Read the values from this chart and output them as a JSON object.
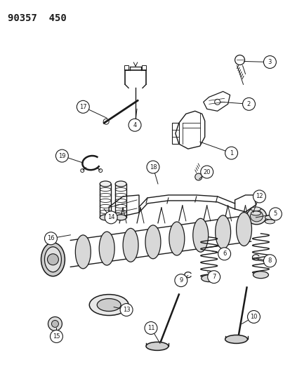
{
  "title": "90357  450",
  "bg_color": "#ffffff",
  "line_color": "#1a1a1a",
  "fig_width": 4.14,
  "fig_height": 5.33,
  "dpi": 100,
  "labels": [
    [
      1,
      330,
      218,
      285,
      202
    ],
    [
      2,
      355,
      148,
      315,
      145
    ],
    [
      3,
      385,
      88,
      348,
      87
    ],
    [
      4,
      192,
      178,
      195,
      155
    ],
    [
      5,
      393,
      305,
      365,
      310
    ],
    [
      6,
      320,
      362,
      302,
      358
    ],
    [
      7,
      305,
      395,
      296,
      388
    ],
    [
      8,
      385,
      372,
      362,
      368
    ],
    [
      9,
      258,
      400,
      268,
      393
    ],
    [
      10,
      362,
      452,
      345,
      462
    ],
    [
      11,
      215,
      468,
      228,
      490
    ],
    [
      12,
      370,
      280,
      361,
      303
    ],
    [
      13,
      180,
      442,
      162,
      438
    ],
    [
      14,
      158,
      310,
      148,
      298
    ],
    [
      15,
      80,
      480,
      80,
      468
    ],
    [
      16,
      72,
      340,
      100,
      335
    ],
    [
      17,
      118,
      152,
      152,
      168
    ],
    [
      18,
      218,
      238,
      225,
      262
    ],
    [
      19,
      88,
      222,
      118,
      232
    ],
    [
      20,
      295,
      245,
      284,
      255
    ]
  ]
}
